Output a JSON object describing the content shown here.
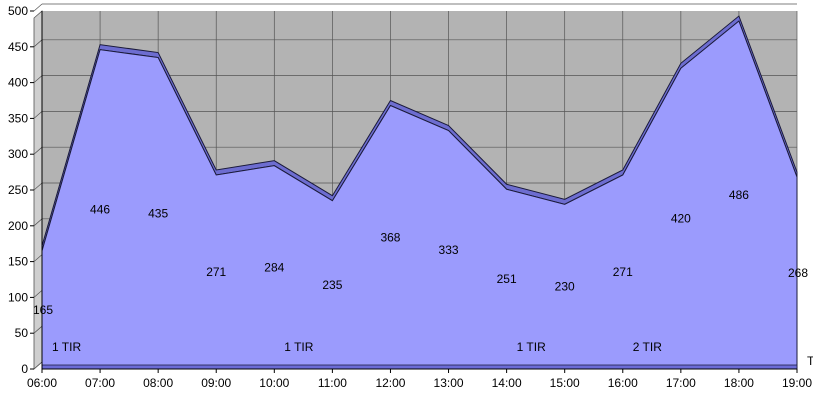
{
  "chart_data": {
    "type": "area",
    "categories": [
      "06:00",
      "07:00",
      "08:00",
      "09:00",
      "10:00",
      "11:00",
      "12:00",
      "13:00",
      "14:00",
      "15:00",
      "16:00",
      "17:00",
      "18:00",
      "19:00"
    ],
    "values": [
      165,
      446,
      435,
      271,
      284,
      235,
      368,
      333,
      251,
      230,
      271,
      420,
      486,
      268
    ],
    "ylim": [
      0,
      500
    ],
    "yticks": [
      0,
      50,
      100,
      150,
      200,
      250,
      300,
      350,
      400,
      450,
      500
    ],
    "annotations": [
      {
        "category": "06:00",
        "text": "1 TIR"
      },
      {
        "category": "10:00",
        "text": "1 TIR"
      },
      {
        "category": "14:00",
        "text": "1 TIR"
      },
      {
        "category": "16:00",
        "text": "2 TIR"
      }
    ],
    "corner_label": "T",
    "grid": true,
    "three_d": true,
    "colors": {
      "area_fill": "#9b9bfd",
      "area_top": "#6d6dd0",
      "wall": "#b3b3b3",
      "grid": "#555555",
      "floor": "#6b6bd6"
    }
  }
}
